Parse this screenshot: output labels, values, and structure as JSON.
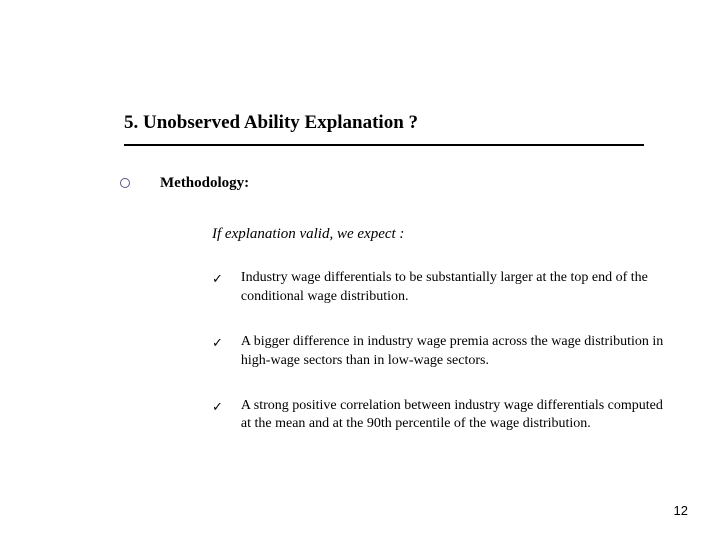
{
  "title": "5. Unobserved Ability Explanation ?",
  "methodology_label": "Methodology:",
  "expect_line": "If explanation valid, we expect :",
  "checks": [
    "Industry wage differentials to be substantially larger at the top end of the conditional wage distribution.",
    "A bigger difference in industry wage premia across the wage distribution in high-wage sectors than in low-wage sectors.",
    "A strong positive correlation between industry wage differentials computed at the mean and at the 90th percentile of the wage distribution."
  ],
  "page_number": "12",
  "colors": {
    "bullet_ring": "#5a5a8a",
    "text": "#000000",
    "divider": "#000000",
    "background": "#ffffff"
  },
  "checkmark_glyph": "✓"
}
